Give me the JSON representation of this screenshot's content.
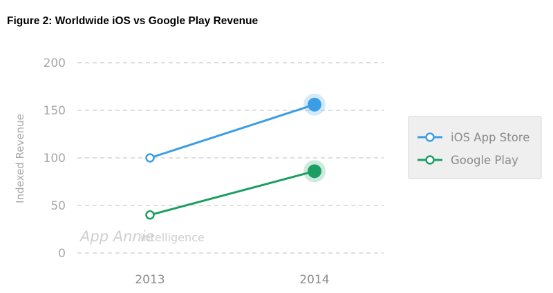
{
  "figure": {
    "title": "Figure 2: Worldwide iOS vs Google Play Revenue"
  },
  "watermark": {
    "brand": "App Annie",
    "suffix": "intelligence"
  },
  "chart_data": {
    "type": "line",
    "categories": [
      "2013",
      "2014"
    ],
    "ylabel": "Indexed Revenue",
    "xlabel": "",
    "ylim": [
      0,
      200
    ],
    "yticks": [
      "0",
      "50",
      "100",
      "150",
      "200"
    ],
    "grid": true,
    "legend_position": "right",
    "series": [
      {
        "name": "iOS App Store",
        "values": [
          100,
          156
        ],
        "color": "#3a9ee6"
      },
      {
        "name": "Google Play",
        "values": [
          40,
          86
        ],
        "color": "#1b9e63"
      }
    ]
  }
}
